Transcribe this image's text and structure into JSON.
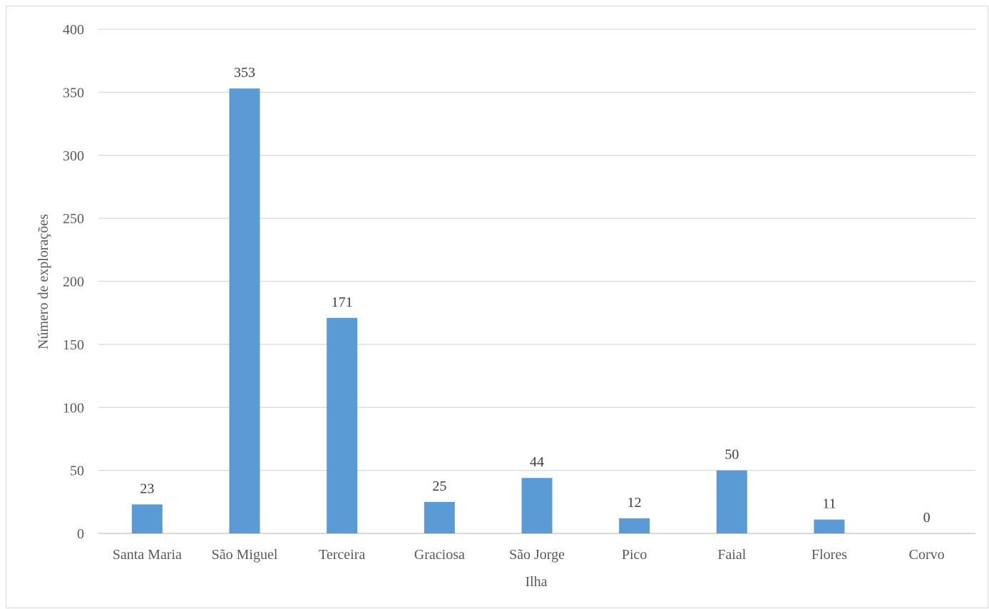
{
  "chart_data": {
    "type": "bar",
    "title": "",
    "xlabel": "Ilha",
    "ylabel": "Número de explorações",
    "categories": [
      "Santa Maria",
      "São Miguel",
      "Terceira",
      "Graciosa",
      "São Jorge",
      "Pico",
      "Faial",
      "Flores",
      "Corvo"
    ],
    "values": [
      23,
      353,
      171,
      25,
      44,
      12,
      50,
      11,
      0
    ],
    "ylim": [
      0,
      400
    ],
    "yticks": [
      0,
      50,
      100,
      150,
      200,
      250,
      300,
      350,
      400
    ],
    "grid": true,
    "legend": "none",
    "bar_color": "#5b9bd5",
    "data_labels": true
  }
}
